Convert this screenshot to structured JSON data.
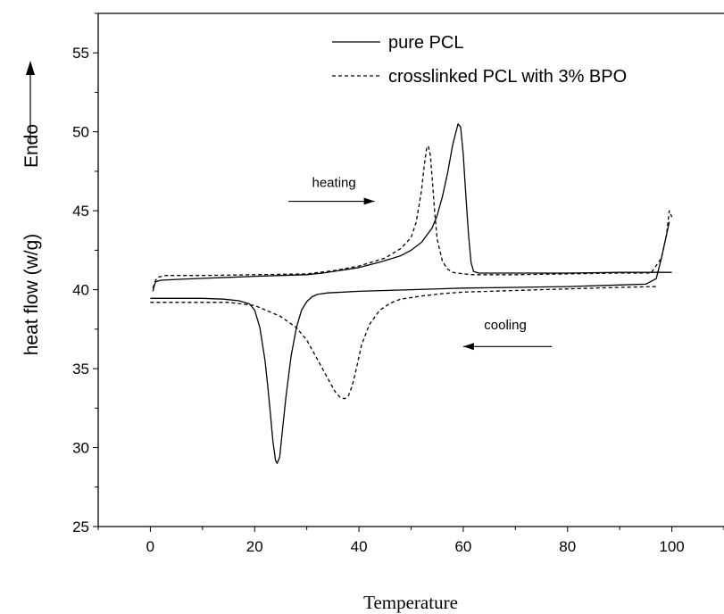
{
  "chart_data": {
    "type": "line",
    "title": "",
    "xlabel": "Temperature",
    "ylabel": "heat flow (w/g)",
    "ylabel_extra": "Endo",
    "xlim": [
      -10,
      110
    ],
    "ylim": [
      25,
      57.5
    ],
    "xticks": [
      0,
      20,
      40,
      60,
      80,
      100
    ],
    "yticks": [
      25,
      30,
      35,
      40,
      45,
      50,
      55
    ],
    "grid": false,
    "legend_position": "top-right",
    "series": [
      {
        "name": "pure PCL",
        "style": "solid",
        "segments": [
          {
            "label": "heating",
            "x": [
              0.5,
              0.7,
              1,
              1.5,
              2,
              5,
              10,
              15,
              20,
              25,
              30,
              33,
              36,
              40,
              44,
              48,
              50,
              52,
              54,
              55,
              56,
              57,
              58,
              59,
              59.5,
              60,
              60.5,
              61,
              61.5,
              62,
              63,
              65,
              70,
              80,
              90,
              100
            ],
            "y": [
              39.9,
              40.2,
              40.5,
              40.55,
              40.6,
              40.65,
              40.72,
              40.78,
              40.85,
              40.9,
              40.95,
              41.05,
              41.2,
              41.4,
              41.75,
              42.15,
              42.5,
              43.0,
              43.9,
              44.7,
              45.9,
              47.4,
              49.2,
              50.5,
              50.3,
              48.6,
              46.0,
              43.5,
              41.7,
              41.15,
              41.05,
              41.05,
              41.05,
              41.05,
              41.1,
              41.1
            ]
          },
          {
            "label": "cooling",
            "x": [
              0,
              5,
              10,
              14,
              17,
              19,
              20,
              21,
              22,
              22.5,
              23,
              23.5,
              24,
              24.3,
              24.8,
              25.3,
              26,
              27,
              28,
              29,
              30,
              31,
              32,
              34,
              37,
              40,
              50,
              60,
              70,
              80,
              90,
              95,
              97,
              98,
              99,
              99.5
            ],
            "y": [
              39.45,
              39.45,
              39.45,
              39.4,
              39.3,
              39.1,
              38.7,
              37.6,
              35.5,
              33.9,
              32.2,
              30.4,
              29.2,
              29.0,
              29.4,
              31.0,
              33.2,
              35.8,
              37.6,
              38.7,
              39.25,
              39.55,
              39.7,
              39.8,
              39.85,
              39.9,
              40.0,
              40.1,
              40.15,
              40.2,
              40.3,
              40.35,
              40.7,
              42.0,
              43.5,
              44.3
            ]
          }
        ]
      },
      {
        "name": "crosslinked PCL with 3% BPO",
        "style": "dashed",
        "segments": [
          {
            "label": "heating",
            "x": [
              0.5,
              1,
              1.5,
              3,
              10,
              20,
              30,
              35,
              40,
              45,
              48,
              50,
              51,
              52,
              52.5,
              53,
              53.3,
              53.7,
              54,
              54.5,
              55,
              56,
              57,
              58,
              60,
              62,
              65,
              70,
              80,
              90,
              96,
              98,
              99,
              99.5,
              100
            ],
            "y": [
              40.1,
              40.6,
              40.8,
              40.9,
              40.9,
              40.95,
              41.0,
              41.2,
              41.5,
              42.0,
              42.6,
              43.3,
              44.3,
              46.3,
              47.8,
              49.0,
              49.1,
              48.5,
              47.2,
              45.0,
              43.2,
              41.8,
              41.3,
              41.1,
              41.0,
              40.95,
              40.95,
              40.95,
              41.0,
              41.05,
              41.05,
              42.0,
              43.5,
              45.0,
              44.6
            ]
          },
          {
            "label": "cooling",
            "x": [
              0,
              5,
              10,
              15,
              20,
              25,
              28,
              30,
              32,
              34,
              35.5,
              36.5,
              37.3,
              38,
              38.7,
              39.5,
              40.5,
              42,
              44,
              46,
              48,
              52,
              56,
              60,
              70,
              80,
              90,
              97
            ],
            "y": [
              39.2,
              39.2,
              39.2,
              39.2,
              39.0,
              38.3,
              37.6,
              36.8,
              35.6,
              34.4,
              33.5,
              33.15,
              33.1,
              33.3,
              33.9,
              35.0,
              36.5,
              37.8,
              38.7,
              39.15,
              39.4,
              39.6,
              39.75,
              39.85,
              39.95,
              40.05,
              40.15,
              40.2
            ]
          }
        ]
      }
    ],
    "annotations": [
      {
        "text": "heating",
        "x": 31,
        "y": 46.5,
        "arrow": {
          "from": [
            26.5,
            45.6
          ],
          "to": [
            43,
            45.6
          ]
        }
      },
      {
        "text": "cooling",
        "x": 64,
        "y": 37.5,
        "arrow": {
          "from": [
            77,
            36.4
          ],
          "to": [
            60,
            36.4
          ]
        }
      }
    ]
  }
}
